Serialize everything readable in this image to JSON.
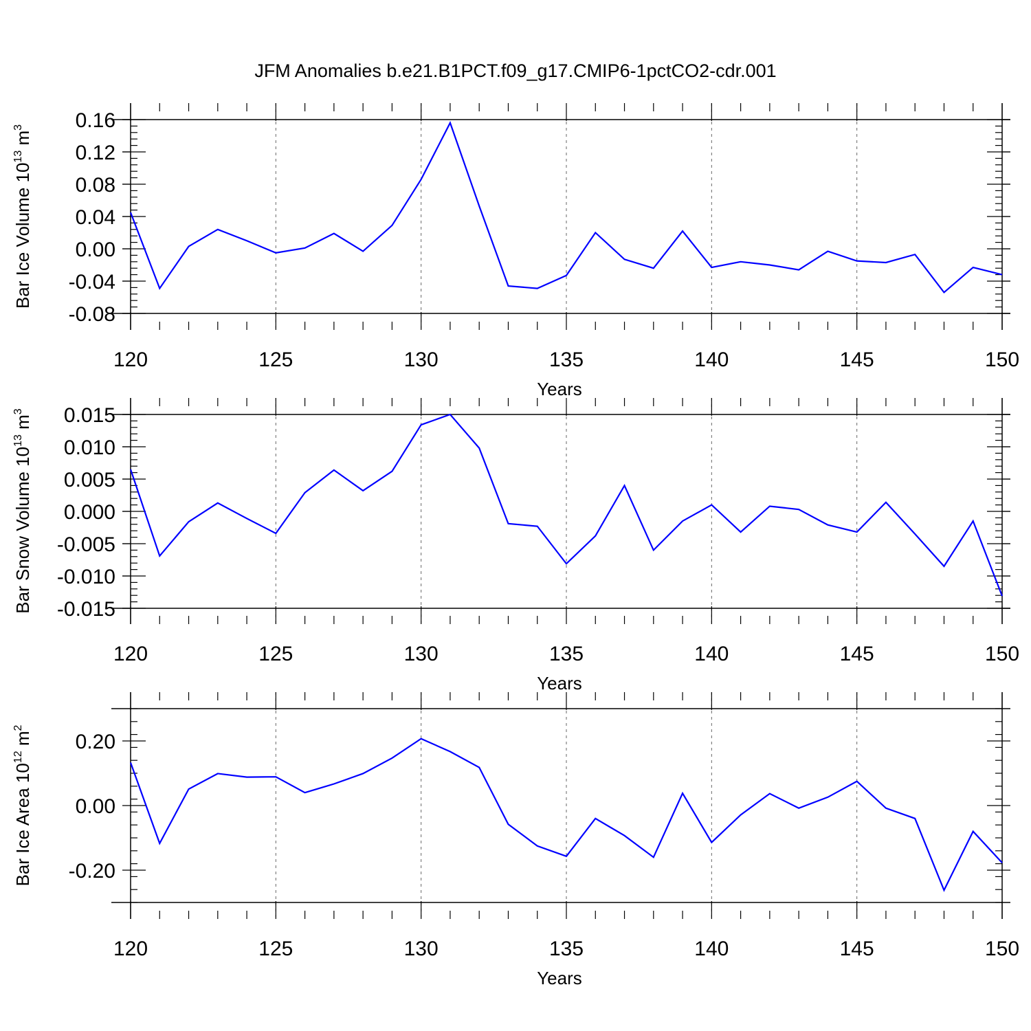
{
  "title": "JFM Anomalies b.e21.B1PCT.f09_g17.CMIP6-1pctCO2-cdr.001",
  "colors": {
    "line": "#0000ff",
    "axis": "#000000",
    "grid": "#666666"
  },
  "chart_data": [
    {
      "type": "line",
      "ylabel": "Bar Ice Volume 10",
      "ylabel_sup": "13",
      "ylabel_unit": " m",
      "ylabel_unit_sup": "3",
      "xlabel": "Years",
      "xlim": [
        120,
        150
      ],
      "ylim": [
        -0.08,
        0.16
      ],
      "yticks": [
        -0.08,
        -0.04,
        0.0,
        0.04,
        0.08,
        0.12,
        0.16
      ],
      "ytick_labels": [
        "-0.08",
        "-0.04",
        "0.00",
        "0.04",
        "0.08",
        "0.12",
        "0.16"
      ],
      "xticks": [
        120,
        125,
        130,
        135,
        140,
        145,
        150
      ],
      "xtick_labels": [
        "120",
        "125",
        "130",
        "135",
        "140",
        "145",
        "150"
      ],
      "grid": "vertical dashed at major x ticks",
      "x": [
        120,
        121,
        122,
        123,
        124,
        125,
        126,
        127,
        128,
        129,
        130,
        131,
        132,
        133,
        134,
        135,
        136,
        137,
        138,
        139,
        140,
        141,
        142,
        143,
        144,
        145,
        146,
        147,
        148,
        149,
        150
      ],
      "y": [
        0.045,
        -0.049,
        0.003,
        0.024,
        0.01,
        -0.005,
        0.001,
        0.019,
        -0.003,
        0.029,
        0.086,
        0.156,
        0.053,
        -0.046,
        -0.049,
        -0.033,
        0.02,
        -0.013,
        -0.024,
        0.022,
        -0.023,
        -0.016,
        -0.02,
        -0.026,
        -0.003,
        -0.015,
        -0.017,
        -0.007,
        -0.054,
        -0.023,
        -0.032
      ]
    },
    {
      "type": "line",
      "ylabel": "Bar Snow Volume 10",
      "ylabel_sup": "13",
      "ylabel_unit": " m",
      "ylabel_unit_sup": "3",
      "xlabel": "Years",
      "xlim": [
        120,
        150
      ],
      "ylim": [
        -0.015,
        0.015
      ],
      "yticks": [
        -0.015,
        -0.01,
        -0.005,
        0.0,
        0.005,
        0.01,
        0.015
      ],
      "ytick_labels": [
        "-0.015",
        "-0.010",
        "-0.005",
        "0.000",
        "0.005",
        "0.010",
        "0.015"
      ],
      "xticks": [
        120,
        125,
        130,
        135,
        140,
        145,
        150
      ],
      "xtick_labels": [
        "120",
        "125",
        "130",
        "135",
        "140",
        "145",
        "150"
      ],
      "grid": "vertical dashed at major x ticks",
      "x": [
        120,
        121,
        122,
        123,
        124,
        125,
        126,
        127,
        128,
        129,
        130,
        131,
        132,
        133,
        134,
        135,
        136,
        137,
        138,
        139,
        140,
        141,
        142,
        143,
        144,
        145,
        146,
        147,
        148,
        149,
        150
      ],
      "y": [
        0.0065,
        -0.0069,
        -0.0016,
        0.0013,
        -0.0011,
        -0.0034,
        0.0029,
        0.0064,
        0.0032,
        0.0062,
        0.0134,
        0.015,
        0.0098,
        -0.0019,
        -0.0023,
        -0.0081,
        -0.0038,
        0.004,
        -0.006,
        -0.0015,
        0.001,
        -0.0032,
        0.0008,
        0.0003,
        -0.0021,
        -0.0032,
        0.0014,
        -0.0035,
        -0.0085,
        -0.0015,
        -0.0131
      ]
    },
    {
      "type": "line",
      "ylabel": "Bar Ice Area 10",
      "ylabel_sup": "12",
      "ylabel_unit": " m",
      "ylabel_unit_sup": "2",
      "xlabel": "Years",
      "xlim": [
        120,
        150
      ],
      "ylim": [
        -0.3,
        0.3
      ],
      "yticks": [
        -0.2,
        0.0,
        0.2
      ],
      "ytick_labels": [
        "-0.20",
        "0.00",
        "0.20"
      ],
      "xticks": [
        120,
        125,
        130,
        135,
        140,
        145,
        150
      ],
      "xtick_labels": [
        "120",
        "125",
        "130",
        "135",
        "140",
        "145",
        "150"
      ],
      "grid": "vertical dashed at major x ticks",
      "x": [
        120,
        121,
        122,
        123,
        124,
        125,
        126,
        127,
        128,
        129,
        130,
        131,
        132,
        133,
        134,
        135,
        136,
        137,
        138,
        139,
        140,
        141,
        142,
        143,
        144,
        145,
        146,
        147,
        148,
        149,
        150
      ],
      "y": [
        0.133,
        -0.117,
        0.051,
        0.099,
        0.088,
        0.089,
        0.04,
        0.067,
        0.099,
        0.147,
        0.207,
        0.167,
        0.118,
        -0.058,
        -0.125,
        -0.157,
        -0.04,
        -0.093,
        -0.16,
        0.038,
        -0.114,
        -0.029,
        0.037,
        -0.008,
        0.026,
        0.075,
        -0.008,
        -0.04,
        -0.262,
        -0.08,
        -0.177
      ]
    }
  ]
}
